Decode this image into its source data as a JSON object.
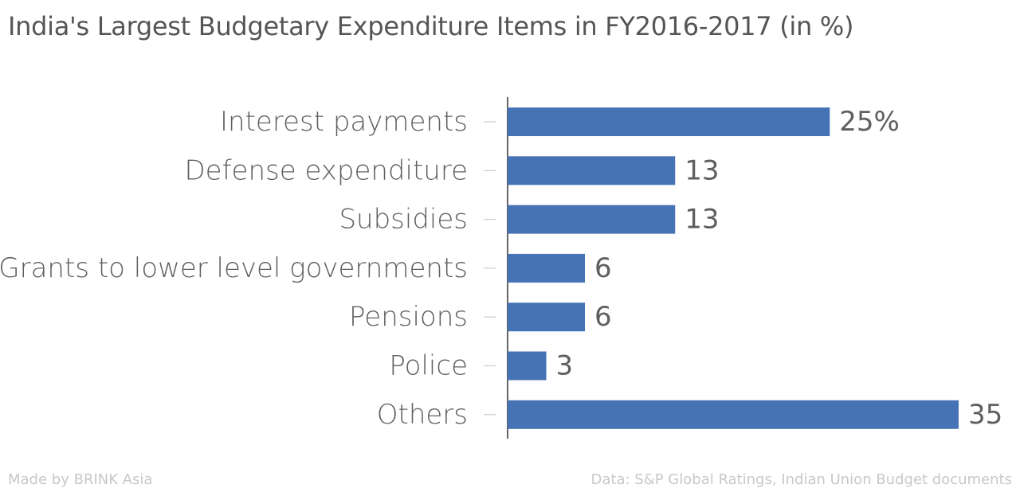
{
  "footer": {
    "made_by": "Made by BRINK Asia",
    "source": "Data: S&P Global Ratings, Indian Union Budget documents"
  },
  "chart_data": {
    "type": "bar",
    "orientation": "horizontal",
    "title": "India's Largest Budgetary Expenditure Items in FY2016-2017 (in %)",
    "categories": [
      "Interest payments",
      "Defense expenditure",
      "Subsidies",
      "Grants to lower level governments",
      "Pensions",
      "Police",
      "Others"
    ],
    "values": [
      25,
      13,
      13,
      6,
      6,
      3,
      35
    ],
    "value_labels": [
      "25%",
      "13",
      "13",
      "6",
      "6",
      "3",
      "35"
    ],
    "xlim": [
      0,
      35
    ],
    "grid": false,
    "legend": "none",
    "bar_color": "#4673b6",
    "text_color": "#5f5f5f",
    "tick_color": "#cccccc",
    "axis_color": "#333333"
  }
}
